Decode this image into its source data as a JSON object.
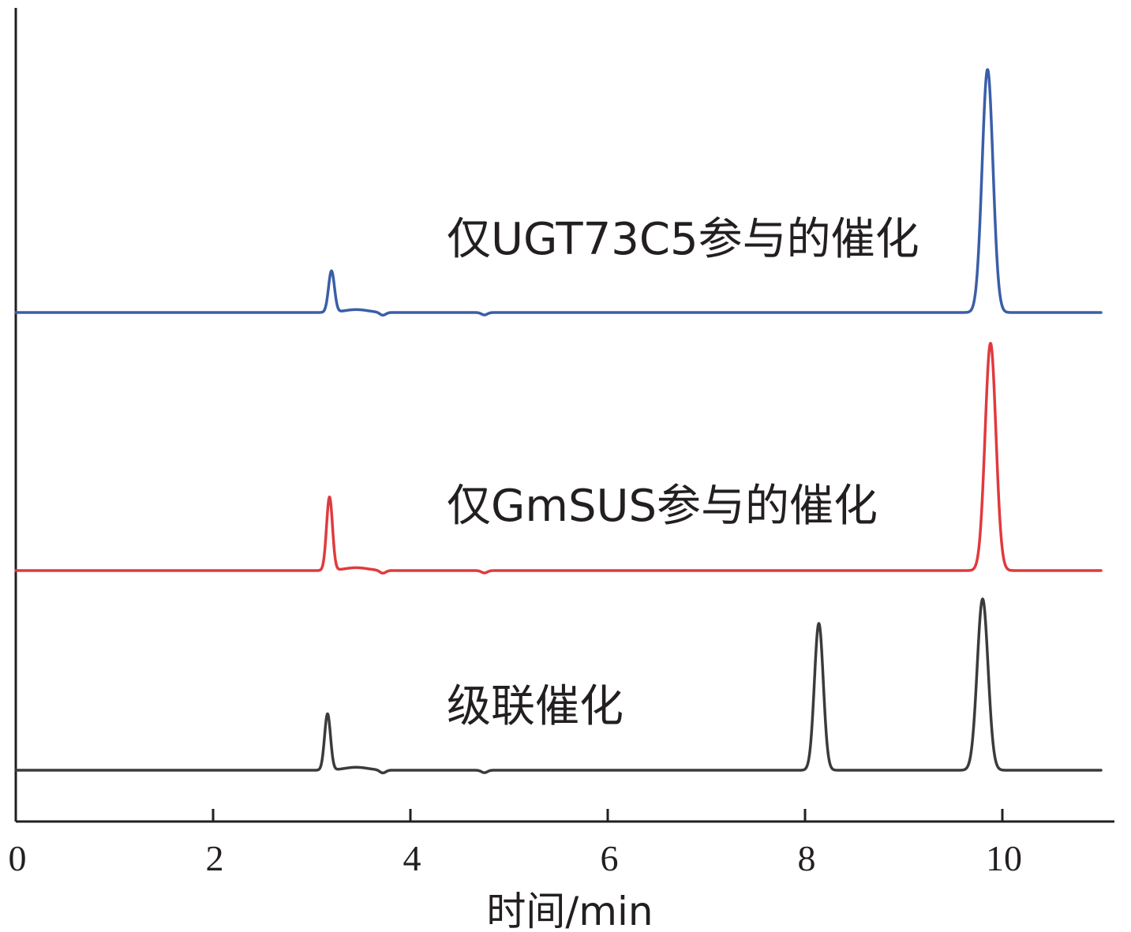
{
  "chart_data": {
    "type": "line",
    "xlabel": "时间/min",
    "ylabel": "",
    "xlim": [
      0,
      11
    ],
    "x_ticks": [
      0,
      2,
      4,
      6,
      8,
      10
    ],
    "y_ticks": [],
    "grid": false,
    "stacked_offset_traces": true,
    "series": [
      {
        "name": "仅UGT73C5参与的催化",
        "color": "#3a5ea8",
        "baseline": 0.0,
        "peaks": [
          {
            "x": 3.2,
            "height": 0.17,
            "width": 0.03
          },
          {
            "x": 9.85,
            "height": 1.0,
            "width": 0.055
          }
        ]
      },
      {
        "name": "仅GmSUS参与的催化",
        "color": "#e03a3e",
        "baseline": 0.0,
        "peaks": [
          {
            "x": 3.18,
            "height": 0.31,
            "width": 0.03
          },
          {
            "x": 9.88,
            "height": 0.96,
            "width": 0.055
          }
        ]
      },
      {
        "name": "级联催化",
        "color": "#3d3a3a",
        "baseline": 0.0,
        "peaks": [
          {
            "x": 3.16,
            "height": 0.23,
            "width": 0.03
          },
          {
            "x": 8.14,
            "height": 0.6,
            "width": 0.045
          },
          {
            "x": 9.8,
            "height": 0.7,
            "width": 0.055
          }
        ]
      }
    ]
  }
}
